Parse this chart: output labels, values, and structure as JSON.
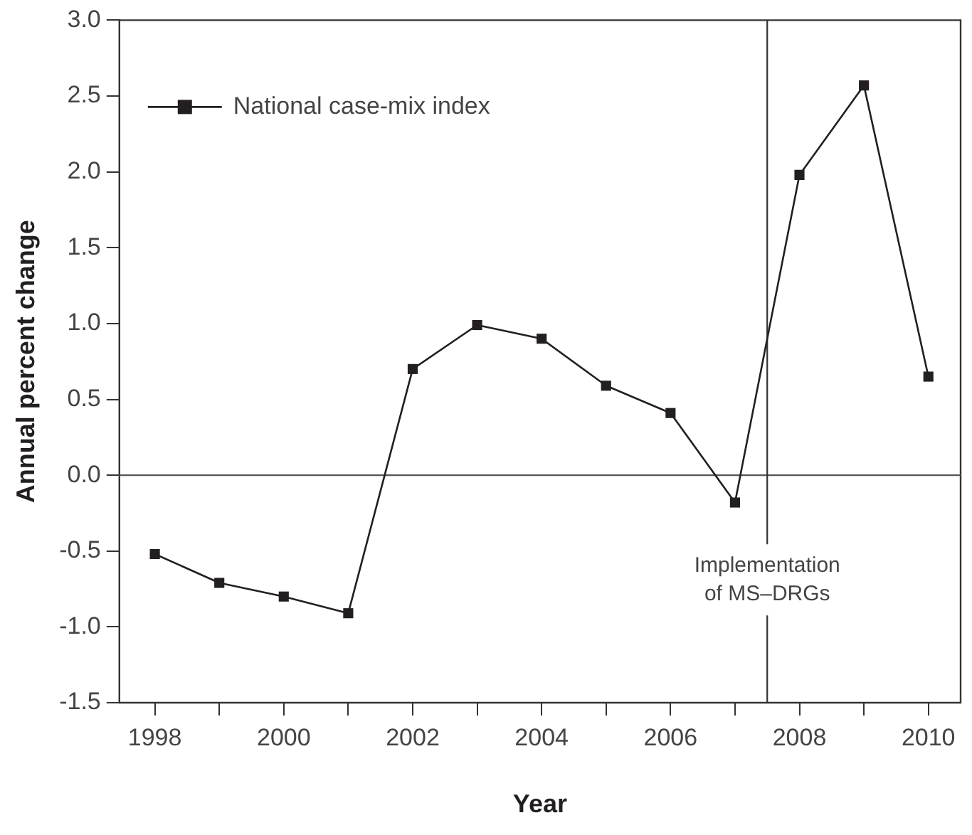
{
  "chart_data": {
    "type": "line",
    "xlabel": "Year",
    "ylabel": "Annual percent change",
    "x": [
      1998,
      1999,
      2000,
      2001,
      2002,
      2003,
      2004,
      2005,
      2006,
      2007,
      2008,
      2009,
      2010
    ],
    "series": [
      {
        "name": "National case-mix index",
        "color": "#231f20",
        "values": [
          -0.52,
          -0.71,
          -0.8,
          -0.91,
          0.7,
          0.99,
          0.9,
          0.59,
          0.41,
          -0.18,
          1.98,
          2.57,
          0.65
        ]
      }
    ],
    "xlim": [
      1997.45,
      2010.5
    ],
    "xticks": [
      1998,
      {
        "value": 1999,
        "label": null
      },
      2000,
      {
        "value": 2001,
        "label": null
      },
      2002,
      {
        "value": 2003,
        "label": null
      },
      2004,
      {
        "value": 2005,
        "label": null
      },
      2006,
      {
        "value": 2007,
        "label": null
      },
      2008,
      {
        "value": 2009,
        "label": null
      },
      2010
    ],
    "ylim": [
      -1.5,
      3.0
    ],
    "yticks": [
      {
        "value": -1.5,
        "label": "-1.5"
      },
      {
        "value": -1.0,
        "label": "-1.0"
      },
      {
        "value": -0.5,
        "label": "-0.5"
      },
      {
        "value": 0,
        "label": "0.0"
      },
      {
        "value": 0.5,
        "label": "0.5"
      },
      {
        "value": 1.0,
        "label": "1.0"
      },
      {
        "value": 1.5,
        "label": "1.5"
      },
      {
        "value": 2.0,
        "label": "2.0"
      },
      {
        "value": 2.5,
        "label": "2.5"
      },
      {
        "value": 3.0,
        "label": "3.0"
      }
    ],
    "ref_lines": [
      {
        "axis": "y",
        "value": 0,
        "color": "#555555"
      },
      {
        "axis": "x",
        "value": 2007.5,
        "label": "Implementation\nof MS–DRGs",
        "color": "#333333"
      }
    ],
    "grid": false,
    "legend": "top left",
    "marker": "square",
    "line_style": "solid"
  }
}
